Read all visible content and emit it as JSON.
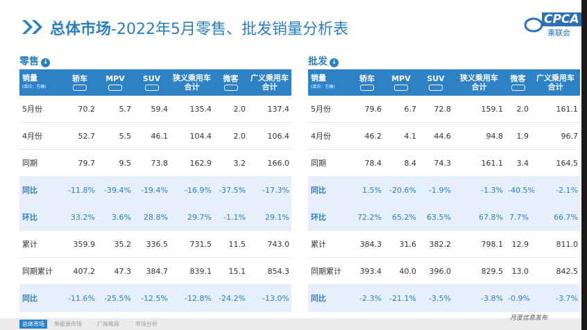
{
  "header": {
    "title_prefix": "总体市场",
    "title": "-2022年5月零售、批发销量分析表",
    "logo": "CPCA",
    "logo_sub": "乘联会"
  },
  "tables": [
    {
      "section": "零售",
      "unit_title": "销量",
      "unit": "(单位：万辆)",
      "columns": [
        [
          "轿车"
        ],
        [
          "MPV"
        ],
        [
          "SUV"
        ],
        [
          "狭义乘用车",
          "合计"
        ],
        [
          "微客"
        ],
        [
          "广义乘用车",
          "合计"
        ]
      ],
      "rows": [
        {
          "label": "5月份",
          "cells": [
            "70.2",
            "5.7",
            "59.4",
            "135.4",
            "2.0",
            "137.4"
          ]
        },
        {
          "label": "4月份",
          "cells": [
            "52.7",
            "5.5",
            "46.1",
            "104.4",
            "2.0",
            "106.4"
          ]
        },
        {
          "label": "同期",
          "cells": [
            "79.7",
            "9.5",
            "73.8",
            "162.9",
            "3.2",
            "166.0"
          ]
        },
        {
          "label": "同比",
          "cells": [
            "-11.8%",
            "-39.4%",
            "-19.4%",
            "-16.9%",
            "-37.5%",
            "-17.3%"
          ]
        },
        {
          "label": "环比",
          "cells": [
            "33.2%",
            "3.6%",
            "28.8%",
            "29.7%",
            "-1.1%",
            "29.1%"
          ]
        },
        {
          "label": "累计",
          "cells": [
            "359.9",
            "35.2",
            "336.5",
            "731.5",
            "11.5",
            "743.0"
          ]
        },
        {
          "label": "同期累计",
          "cells": [
            "407.2",
            "47.3",
            "384.7",
            "839.1",
            "15.1",
            "854.3"
          ]
        },
        {
          "label": "同比",
          "cells": [
            "-11.6%",
            "-25.5%",
            "-12.5%",
            "-12.8%",
            "-24.2%",
            "-13.0%"
          ]
        }
      ]
    },
    {
      "section": "批发",
      "unit_title": "销量",
      "unit": "(单位：万辆)",
      "columns": [
        [
          "轿车"
        ],
        [
          "MPV"
        ],
        [
          "SUV"
        ],
        [
          "狭义乘用车",
          "合计"
        ],
        [
          "微客"
        ],
        [
          "广义乘用车",
          "合计"
        ]
      ],
      "rows": [
        {
          "label": "5月份",
          "cells": [
            "79.6",
            "6.7",
            "72.8",
            "159.1",
            "2.0",
            "161.1"
          ]
        },
        {
          "label": "4月份",
          "cells": [
            "46.2",
            "4.1",
            "44.6",
            "94.8",
            "1.9",
            "96.7"
          ]
        },
        {
          "label": "同期",
          "cells": [
            "78.4",
            "8.4",
            "74.3",
            "161.1",
            "3.4",
            "164.5"
          ]
        },
        {
          "label": "同比",
          "cells": [
            "1.5%",
            "-20.6%",
            "-1.9%",
            "-1.3%",
            "-40.5%",
            "-2.1%"
          ]
        },
        {
          "label": "环比",
          "cells": [
            "72.2%",
            "65.2%",
            "63.5%",
            "67.8%",
            "7.7%",
            "66.7%"
          ]
        },
        {
          "label": "累计",
          "cells": [
            "384.3",
            "31.6",
            "382.2",
            "798.1",
            "12.9",
            "811.0"
          ]
        },
        {
          "label": "同期累计",
          "cells": [
            "393.4",
            "40.0",
            "396.0",
            "829.5",
            "13.0",
            "842.5"
          ]
        },
        {
          "label": "同比",
          "cells": [
            "-2.3%",
            "-21.1%",
            "-3.5%",
            "-3.8%",
            "-0.9%",
            "-3.7%"
          ]
        }
      ]
    }
  ],
  "footer": {
    "tabs": [
      "总体市场",
      "新能源市场",
      "厂商格局",
      "市场分析"
    ],
    "note": "月度信息发布"
  }
}
